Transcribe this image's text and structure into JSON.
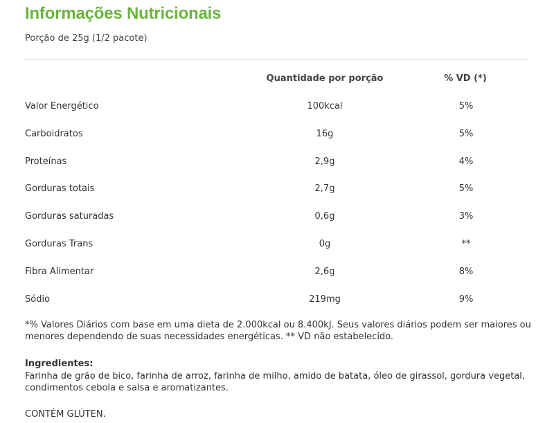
{
  "title": "Informações Nutricionais",
  "portion": "Porção de 25g (1/2 pacote)",
  "table": {
    "headers": {
      "nutrient": "",
      "amount": "Quantidade por porção",
      "dv": "% VD (*)"
    },
    "rows": [
      {
        "name": "Valor Energético",
        "amount": "100kcal",
        "dv": "5%"
      },
      {
        "name": "Carboidratos",
        "amount": "16g",
        "dv": "5%"
      },
      {
        "name": "Proteínas",
        "amount": "2,9g",
        "dv": "4%"
      },
      {
        "name": "Gorduras totais",
        "amount": "2,7g",
        "dv": "5%"
      },
      {
        "name": "Gorduras saturadas",
        "amount": "0,6g",
        "dv": "3%"
      },
      {
        "name": "Gorduras Trans",
        "amount": "0g",
        "dv": "**"
      },
      {
        "name": "Fibra Alimentar",
        "amount": "2,6g",
        "dv": "8%"
      },
      {
        "name": "Sódio",
        "amount": "219mg",
        "dv": "9%"
      }
    ]
  },
  "footnote": "*% Valores Diários com base em uma dieta de 2.000kcal ou 8.400kJ. Seus valores diários podem ser maiores ou menores dependendo de suas necessidades energéticas. ** VD não estabelecido.",
  "ingredients": {
    "label": "Ingredientes:",
    "text": "Farinha de grão de bico, farinha de arroz, farinha de milho, amido de batata, óleo de girassol, gordura vegetal, condimentos cebola e salsa e aromatizantes."
  },
  "allergen": "CONTÉM GLÚTEN.",
  "colors": {
    "title": "#6ab43e",
    "divider": "#d9d9d9",
    "text": "#333333"
  }
}
